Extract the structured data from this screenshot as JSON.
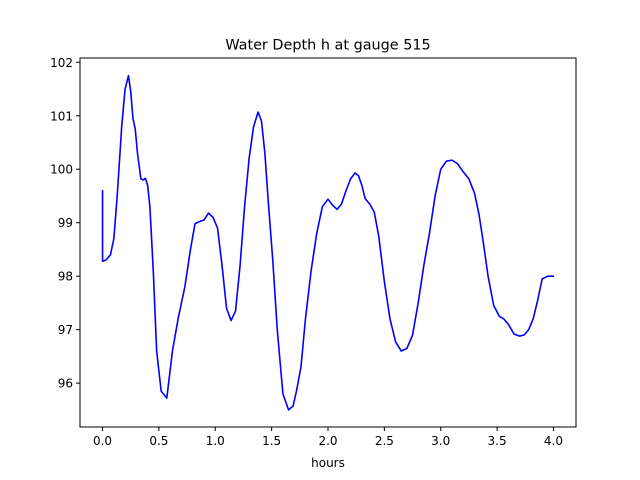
{
  "chart_data": {
    "type": "line",
    "title": "Water Depth h at gauge 515",
    "xlabel": "hours",
    "ylabel": "",
    "xlim": [
      -0.2,
      4.2
    ],
    "ylim": [
      95.18,
      102.08
    ],
    "grid": false,
    "x_ticks": [
      0.0,
      0.5,
      1.0,
      1.5,
      2.0,
      2.5,
      3.0,
      3.5,
      4.0
    ],
    "x_tick_labels": [
      "0.0",
      "0.5",
      "1.0",
      "1.5",
      "2.0",
      "2.5",
      "3.0",
      "3.5",
      "4.0"
    ],
    "y_ticks": [
      96,
      97,
      98,
      99,
      100,
      101,
      102
    ],
    "y_tick_labels": [
      "96",
      "97",
      "98",
      "99",
      "100",
      "101",
      "102"
    ],
    "series": [
      {
        "color": "#0000ff",
        "x": [
          0.0,
          0.0,
          0.03,
          0.07,
          0.1,
          0.13,
          0.17,
          0.2,
          0.23,
          0.25,
          0.27,
          0.29,
          0.31,
          0.34,
          0.36,
          0.38,
          0.4,
          0.42,
          0.45,
          0.48,
          0.52,
          0.57,
          0.62,
          0.67,
          0.73,
          0.78,
          0.82,
          0.86,
          0.9,
          0.94,
          0.98,
          1.02,
          1.06,
          1.1,
          1.14,
          1.18,
          1.22,
          1.26,
          1.3,
          1.34,
          1.38,
          1.41,
          1.44,
          1.47,
          1.51,
          1.55,
          1.6,
          1.65,
          1.69,
          1.72,
          1.76,
          1.8,
          1.85,
          1.9,
          1.95,
          2.0,
          2.04,
          2.08,
          2.12,
          2.16,
          2.2,
          2.24,
          2.27,
          2.3,
          2.33,
          2.37,
          2.41,
          2.45,
          2.5,
          2.55,
          2.6,
          2.65,
          2.7,
          2.75,
          2.8,
          2.85,
          2.9,
          2.95,
          3.0,
          3.05,
          3.1,
          3.15,
          3.2,
          3.25,
          3.3,
          3.34,
          3.38,
          3.42,
          3.47,
          3.52,
          3.56,
          3.6,
          3.65,
          3.7,
          3.74,
          3.78,
          3.82,
          3.86,
          3.9,
          3.95,
          4.0
        ],
        "y": [
          99.6,
          98.28,
          98.3,
          98.4,
          98.7,
          99.5,
          100.8,
          101.5,
          101.75,
          101.45,
          100.95,
          100.75,
          100.3,
          99.82,
          99.8,
          99.83,
          99.7,
          99.3,
          98.1,
          96.6,
          95.85,
          95.72,
          96.6,
          97.2,
          97.8,
          98.5,
          98.98,
          99.02,
          99.05,
          99.18,
          99.1,
          98.9,
          98.2,
          97.4,
          97.17,
          97.35,
          98.2,
          99.3,
          100.2,
          100.8,
          101.07,
          100.9,
          100.3,
          99.4,
          98.3,
          97.0,
          95.8,
          95.5,
          95.57,
          95.85,
          96.3,
          97.2,
          98.1,
          98.8,
          99.3,
          99.44,
          99.33,
          99.25,
          99.35,
          99.6,
          99.82,
          99.93,
          99.88,
          99.7,
          99.45,
          99.35,
          99.2,
          98.75,
          97.9,
          97.2,
          96.77,
          96.6,
          96.65,
          96.9,
          97.5,
          98.2,
          98.8,
          99.5,
          100.0,
          100.15,
          100.17,
          100.1,
          99.95,
          99.82,
          99.55,
          99.15,
          98.6,
          98.0,
          97.45,
          97.25,
          97.2,
          97.1,
          96.92,
          96.88,
          96.9,
          97.0,
          97.2,
          97.55,
          97.95,
          98.0,
          98.0
        ]
      }
    ]
  }
}
